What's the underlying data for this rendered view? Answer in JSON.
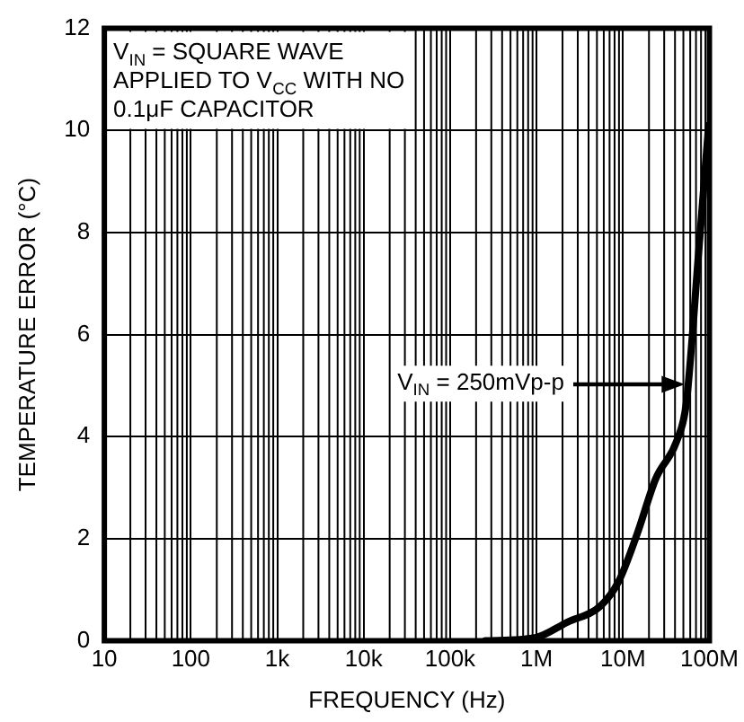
{
  "chart_data": {
    "type": "line",
    "xlabel": "FREQUENCY (Hz)",
    "ylabel": "TEMPERATURE ERROR (°C)",
    "log": "x",
    "x": [
      257000,
      960000,
      2300000,
      5400000,
      8900000,
      14500000,
      24000000,
      42000000,
      54000000,
      75000000,
      98000000
    ],
    "series": [
      {
        "color": "#000000",
        "values": [
          0,
          0.06,
          0.37,
          0.67,
          1.16,
          2.08,
          3.18,
          3.92,
          4.65,
          7.6,
          10.1
        ]
      }
    ],
    "xlim": [
      10,
      100000000
    ],
    "xticks": [
      10,
      100,
      {
        "value": 1000,
        "label": "1k"
      },
      {
        "value": 10000,
        "label": "10k"
      },
      {
        "value": 100000,
        "label": "100k"
      },
      {
        "value": 1000000,
        "label": "1M"
      },
      {
        "value": 10000000,
        "label": "10M"
      },
      {
        "value": 100000000,
        "label": "100M"
      }
    ],
    "ylim": [
      0,
      12
    ],
    "yticks": [
      0,
      2,
      4,
      6,
      8,
      10,
      12
    ],
    "grid": true,
    "legend": false,
    "marker": "none",
    "line_style": "solid",
    "annotations": [
      "V$_{IN}$ = SQUARE WAVE\nAPPLIED TO V$_{CC}$ WITH NO\n0.1μF CAPACITOR",
      "V$_{IN}$ = 250mVp-p"
    ]
  }
}
